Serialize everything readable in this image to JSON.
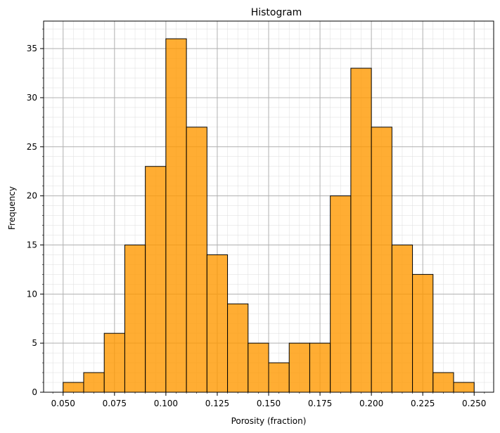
{
  "chart_data": {
    "type": "bar",
    "title": "Histogram",
    "xlabel": "Porosity (fraction)",
    "ylabel": "Frequency",
    "bin_width": 0.01,
    "bins": [
      {
        "x0": 0.05,
        "x1": 0.06,
        "value": 1
      },
      {
        "x0": 0.06,
        "x1": 0.07,
        "value": 2
      },
      {
        "x0": 0.07,
        "x1": 0.08,
        "value": 6
      },
      {
        "x0": 0.08,
        "x1": 0.09,
        "value": 15
      },
      {
        "x0": 0.09,
        "x1": 0.1,
        "value": 23
      },
      {
        "x0": 0.1,
        "x1": 0.11,
        "value": 36
      },
      {
        "x0": 0.11,
        "x1": 0.12,
        "value": 27
      },
      {
        "x0": 0.12,
        "x1": 0.13,
        "value": 14
      },
      {
        "x0": 0.13,
        "x1": 0.14,
        "value": 9
      },
      {
        "x0": 0.14,
        "x1": 0.15,
        "value": 5
      },
      {
        "x0": 0.15,
        "x1": 0.16,
        "value": 3
      },
      {
        "x0": 0.16,
        "x1": 0.17,
        "value": 5
      },
      {
        "x0": 0.17,
        "x1": 0.18,
        "value": 5
      },
      {
        "x0": 0.18,
        "x1": 0.19,
        "value": 20
      },
      {
        "x0": 0.19,
        "x1": 0.2,
        "value": 33
      },
      {
        "x0": 0.2,
        "x1": 0.21,
        "value": 27
      },
      {
        "x0": 0.21,
        "x1": 0.22,
        "value": 15
      },
      {
        "x0": 0.22,
        "x1": 0.23,
        "value": 12
      },
      {
        "x0": 0.23,
        "x1": 0.24,
        "value": 2
      },
      {
        "x0": 0.24,
        "x1": 0.25,
        "value": 1
      }
    ],
    "xlim": [
      0.0405,
      0.2595
    ],
    "ylim": [
      0,
      37.8
    ],
    "x_ticks": [
      "0.050",
      "0.075",
      "0.100",
      "0.125",
      "0.150",
      "0.175",
      "0.200",
      "0.225",
      "0.250"
    ],
    "y_ticks": [
      "0",
      "5",
      "10",
      "15",
      "20",
      "25",
      "30",
      "35"
    ],
    "grid": true,
    "minor_grid": true,
    "bar_color": "#ff9900",
    "bar_edge_color": "#000000",
    "legend": "none"
  }
}
